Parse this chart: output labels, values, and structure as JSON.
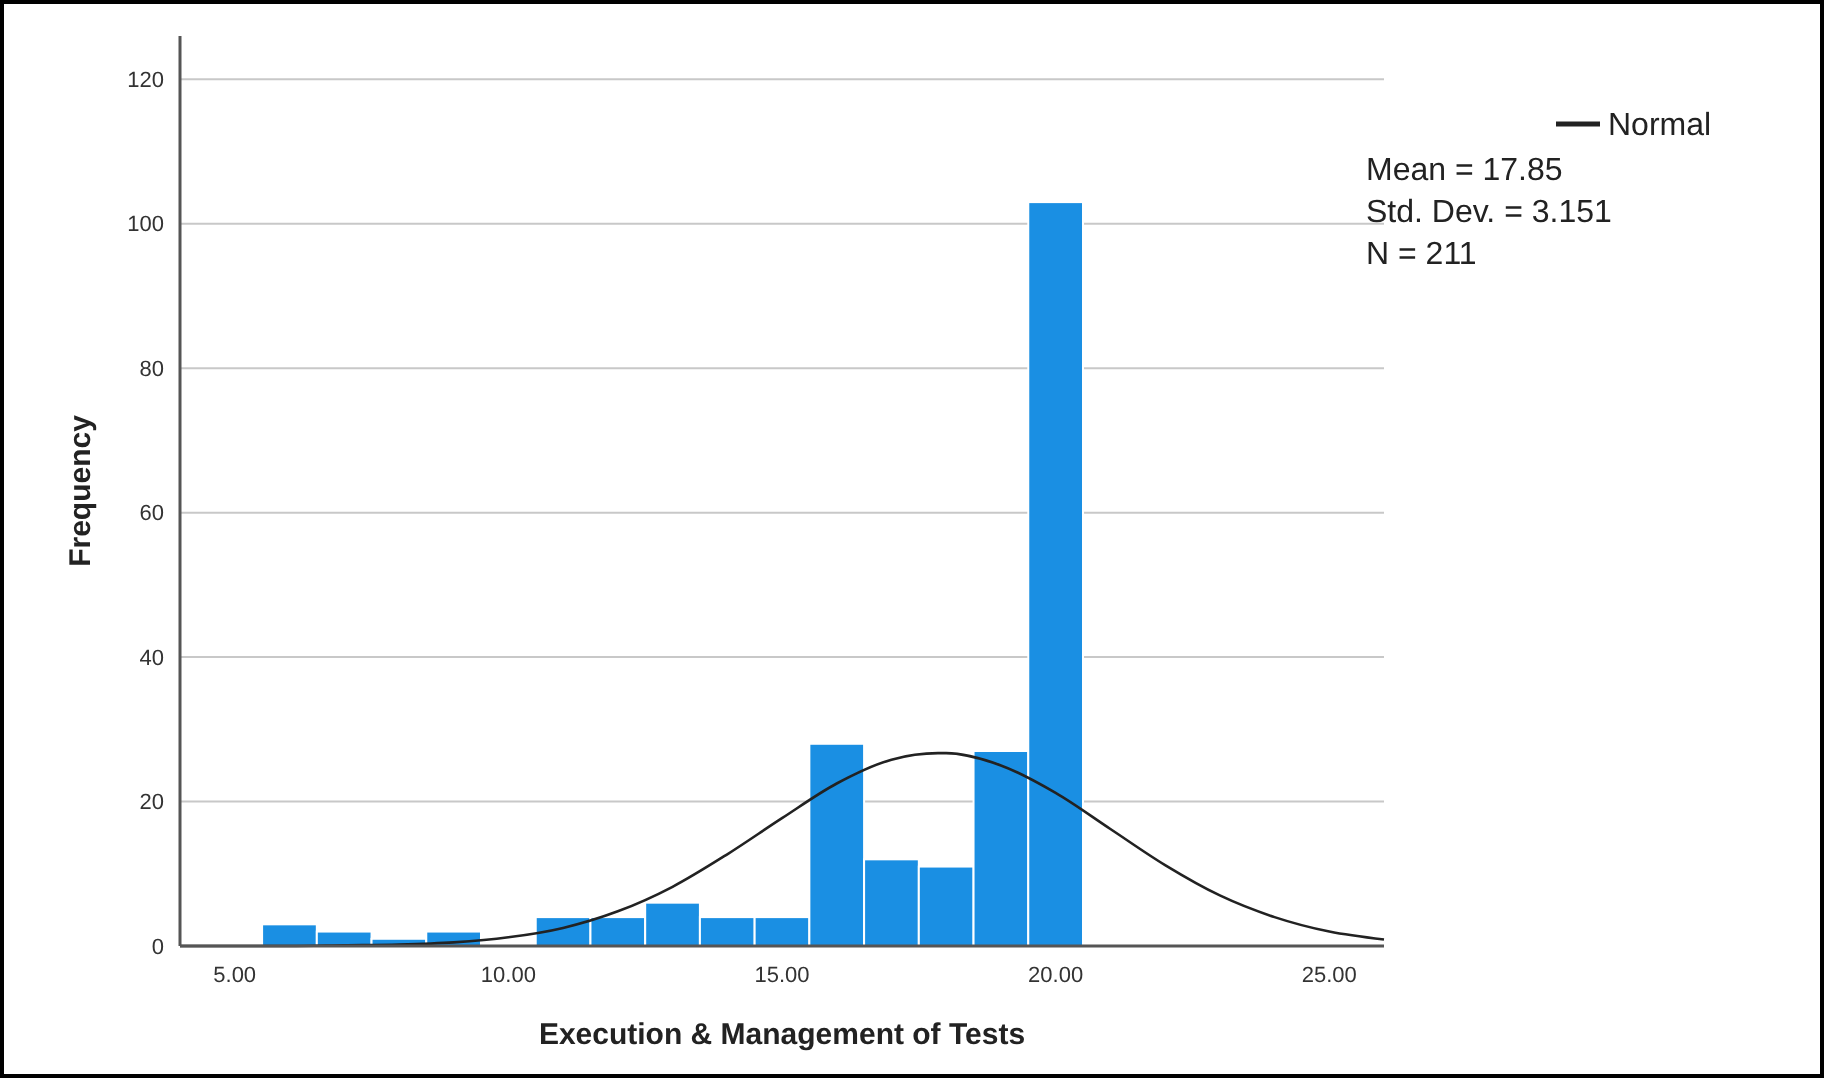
{
  "chart_data": {
    "type": "histogram",
    "xlabel": "Execution & Management of Tests",
    "ylabel": "Frequency",
    "bins": [
      5.5,
      6.5,
      7.5,
      8.5,
      9.5,
      10.5,
      11.5,
      12.5,
      13.5,
      14.5,
      15.5,
      16.5,
      17.5,
      18.5,
      19.5,
      20.5
    ],
    "values": [
      3,
      2,
      1,
      2,
      0,
      4,
      4,
      6,
      4,
      4,
      28,
      12,
      11,
      27,
      103
    ],
    "color": "#1a8fe3",
    "series": [
      {
        "type": "line",
        "name": "Normal",
        "color": "#222222",
        "x": [
          4,
          5,
          6,
          7,
          8,
          9,
          10,
          11,
          12,
          13,
          14,
          15,
          16,
          17,
          17.85,
          18,
          19,
          20,
          21,
          22,
          23,
          24,
          25,
          26
        ],
        "values": [
          0,
          0,
          0,
          0.1,
          0.2,
          0.5,
          1.2,
          2.5,
          4.8,
          8.2,
          12.7,
          17.7,
          22.5,
          25.8,
          26.7,
          26.7,
          25.0,
          21.2,
          16.2,
          11.2,
          7.0,
          4.0,
          2.0,
          0.9
        ]
      }
    ],
    "xlim": [
      4,
      26
    ],
    "ylim": [
      0,
      126
    ],
    "xticks": [
      {
        "value": 5,
        "label": "5.00"
      },
      {
        "value": 10,
        "label": "10.00"
      },
      {
        "value": 15,
        "label": "15.00"
      },
      {
        "value": 20,
        "label": "20.00"
      },
      {
        "value": 25,
        "label": "25.00"
      }
    ],
    "yticks": [
      0,
      20,
      40,
      60,
      80,
      100,
      120
    ],
    "grid": "y",
    "legend": "top right",
    "annotations": [
      "Mean = 17.85",
      "Std. Dev. = 3.151",
      "N = 211"
    ]
  }
}
